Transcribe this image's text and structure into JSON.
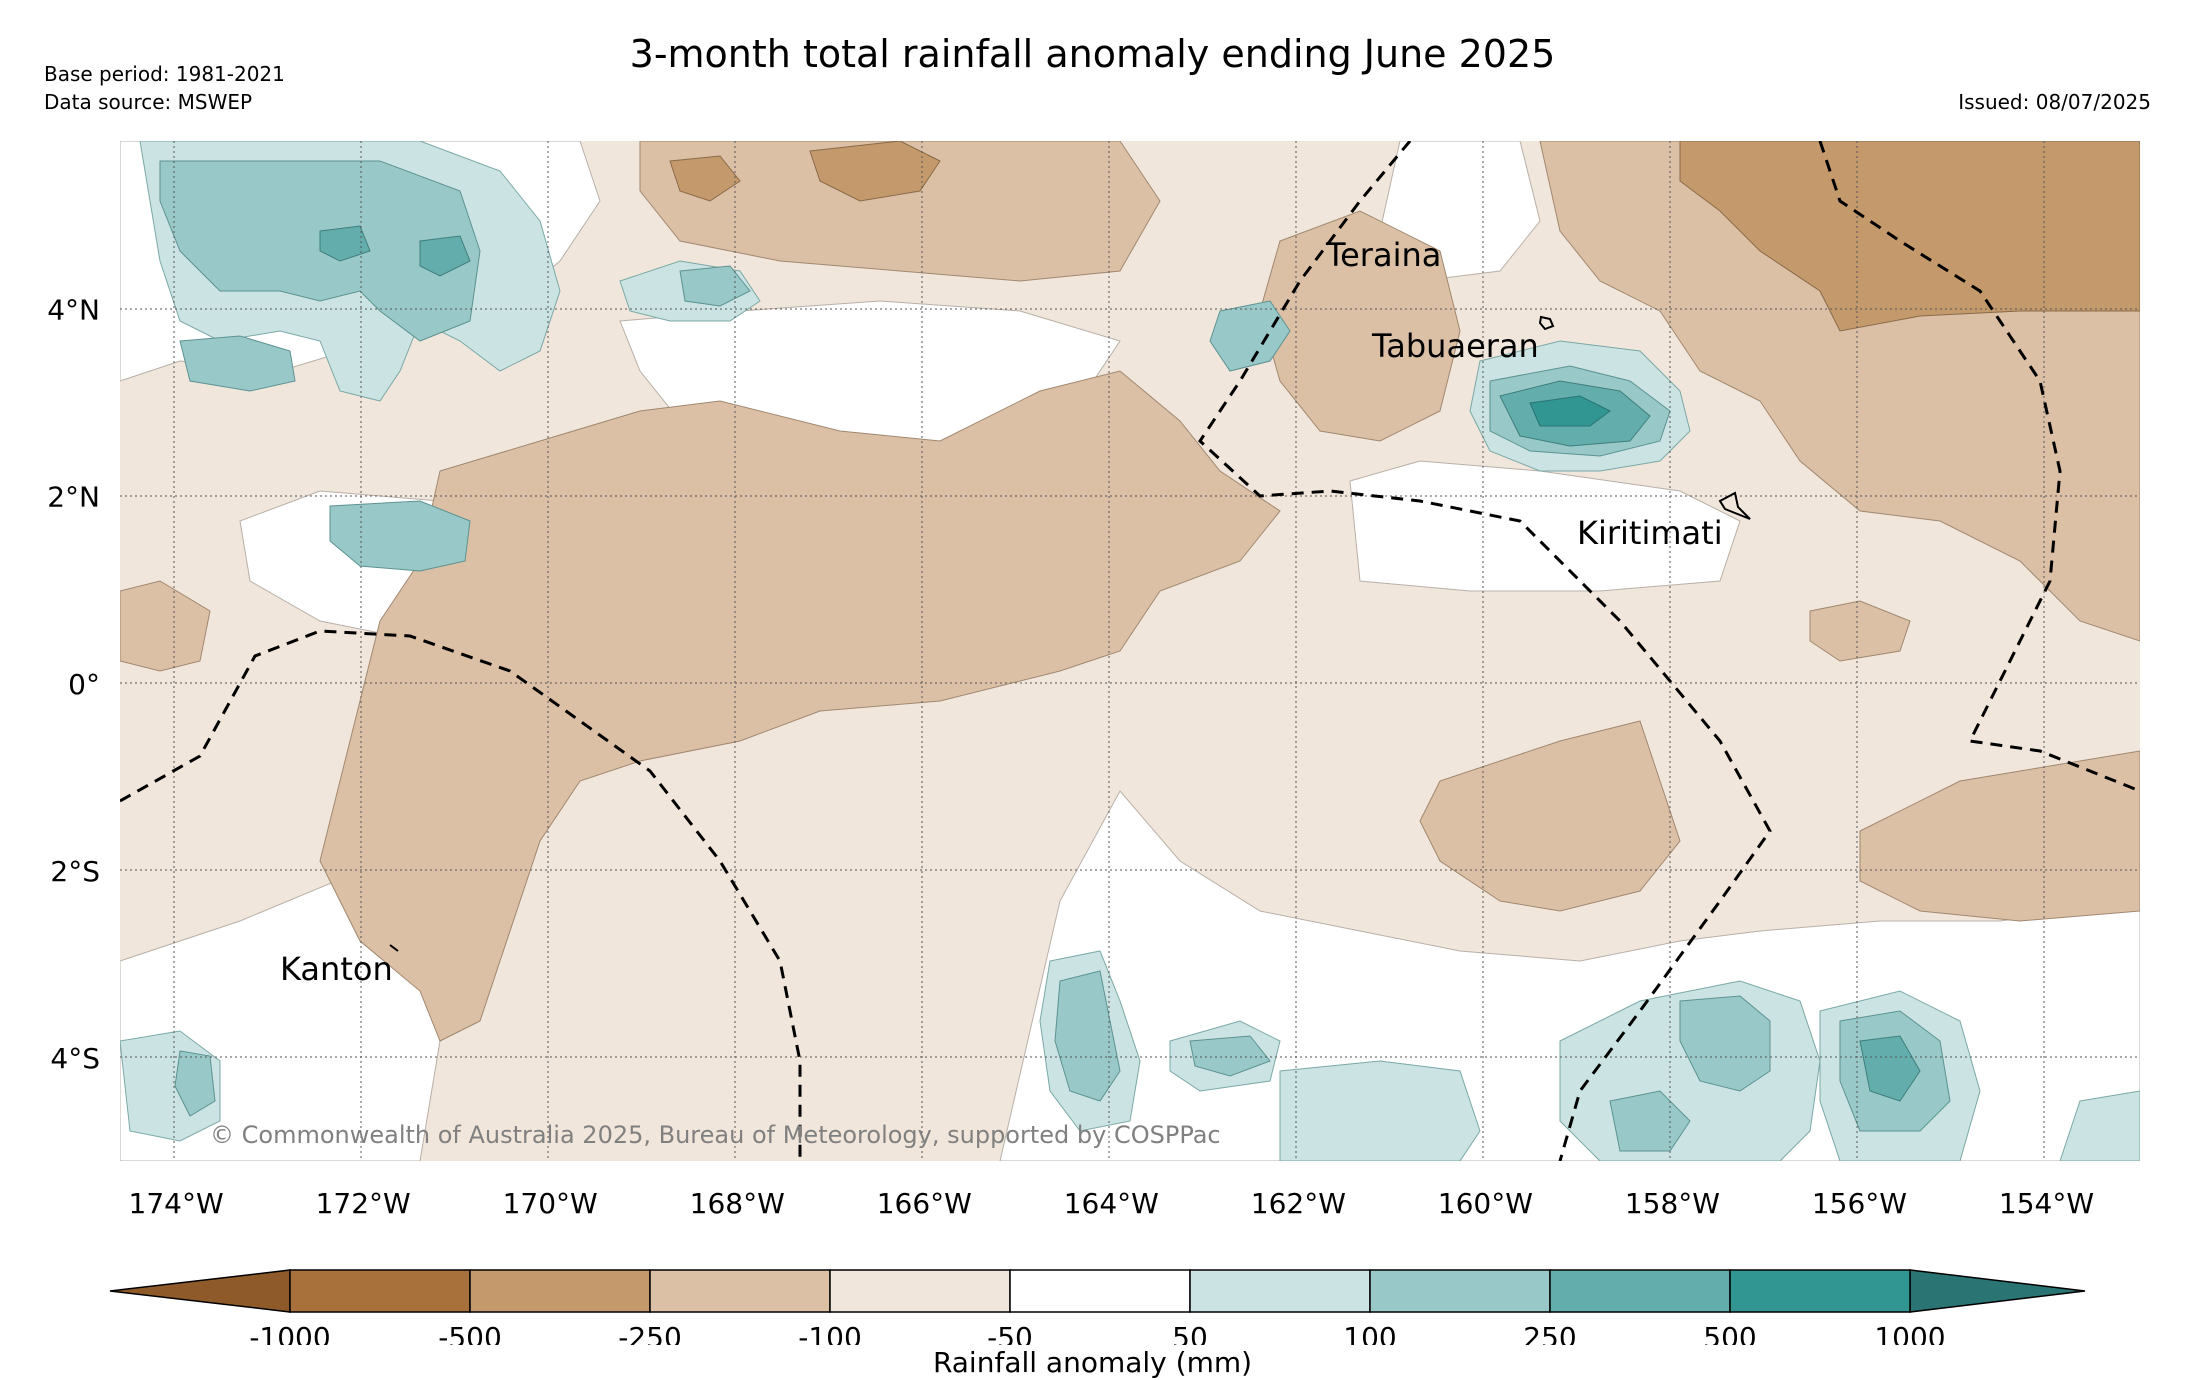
{
  "title": "3-month total rainfall anomaly ending June 2025",
  "meta": {
    "base_period": "Base period: 1981-2021",
    "data_source": "Data source: MSWEP",
    "issued": "Issued: 08/07/2025"
  },
  "map": {
    "lon_range": [
      -174.6,
      -153.0
    ],
    "lat_range": [
      -5.1,
      5.8
    ],
    "lon_ticks": [
      {
        "value": -174,
        "label": "174°W"
      },
      {
        "value": -172,
        "label": "172°W"
      },
      {
        "value": -170,
        "label": "170°W"
      },
      {
        "value": -168,
        "label": "168°W"
      },
      {
        "value": -166,
        "label": "166°W"
      },
      {
        "value": -164,
        "label": "164°W"
      },
      {
        "value": -162,
        "label": "162°W"
      },
      {
        "value": -160,
        "label": "160°W"
      },
      {
        "value": -158,
        "label": "158°W"
      },
      {
        "value": -156,
        "label": "156°W"
      },
      {
        "value": -154,
        "label": "154°W"
      }
    ],
    "lat_ticks": [
      {
        "value": 4,
        "label": "4°N"
      },
      {
        "value": 2,
        "label": "2°N"
      },
      {
        "value": 0,
        "label": "0°"
      },
      {
        "value": -2,
        "label": "2°S"
      },
      {
        "value": -4,
        "label": "4°S"
      }
    ],
    "places": [
      {
        "name": "Teraina",
        "lon": -162.2,
        "lat": 4.6
      },
      {
        "name": "Tabuaeran",
        "lon": -161.2,
        "lat": 3.6
      },
      {
        "name": "Kiritimati",
        "lon": -159.1,
        "lat": 1.55
      },
      {
        "name": "Kanton",
        "lon": -172.85,
        "lat": -3.15
      }
    ],
    "colors": {
      "dry_1000": "#a8703b",
      "dry_500": "#c49a6c",
      "dry_250": "#dbc0a6",
      "dry_100": "#f1e6dc",
      "near_normal": "#ffffff",
      "wet_50": "#cbe4e3",
      "wet_100": "#98c9c8",
      "wet_250": "#63aead",
      "wet_500": "#319592",
      "wet_1000": "#2a7573"
    },
    "copyright": "© Commonwealth of Australia 2025, Bureau of Meteorology, supported by COSPPac"
  },
  "legend": {
    "label": "Rainfall anomaly (mm)",
    "ticks": [
      "-1000",
      "-500",
      "-250",
      "-100",
      "-50",
      "50",
      "100",
      "250",
      "500",
      "1000"
    ],
    "colors": [
      "#a8703b",
      "#c49a6c",
      "#dbc0a6",
      "#f1e6dc",
      "#ffffff",
      "#cbe4e3",
      "#98c9c8",
      "#63aead",
      "#319592"
    ],
    "extend_low_color": "#8f5a2a",
    "extend_high_color": "#2a7573"
  }
}
